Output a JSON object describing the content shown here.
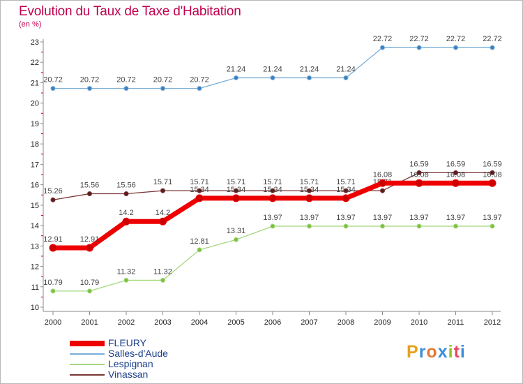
{
  "header": {
    "title": "Evolution du Taux de Taxe d'Habitation",
    "subtitle": "(en %)"
  },
  "logo": {
    "text": "Proxiti",
    "colors": [
      "#e8a020",
      "#3a8fd8",
      "#e87830",
      "#3a8fd8",
      "#8fc030",
      "#e84860",
      "#3a8fd8"
    ]
  },
  "chart_data": {
    "type": "line",
    "title": "Evolution du Taux de Taxe d'Habitation",
    "ylabel": "(en %)",
    "xlabel": "",
    "x": [
      "2000",
      "2001",
      "2002",
      "2003",
      "2004",
      "2005",
      "2006",
      "2007",
      "2008",
      "2009",
      "2010",
      "2011",
      "2012"
    ],
    "ylim": [
      10,
      23
    ],
    "yticks": [
      10,
      11,
      12,
      13,
      14,
      15,
      16,
      17,
      18,
      19,
      20,
      21,
      22,
      23
    ],
    "grid": false,
    "legend_position": "bottom-left",
    "series": [
      {
        "name": "FLEURY",
        "color": "#ee0000",
        "width": 7,
        "values": [
          12.91,
          12.91,
          14.2,
          14.2,
          15.34,
          15.34,
          15.34,
          15.34,
          15.34,
          16.08,
          16.08,
          16.08,
          16.08
        ],
        "labels": [
          "12.91",
          "12.91",
          "14.2",
          "14.2",
          "15.34",
          "15.34",
          "15.34",
          "15.34",
          "15.34",
          "16.08",
          "16.08",
          "16.08",
          "16.08"
        ]
      },
      {
        "name": "Salles-d'Aude",
        "color": "#7aaed6",
        "width": 1.3,
        "values": [
          20.72,
          20.72,
          20.72,
          20.72,
          20.72,
          21.24,
          21.24,
          21.24,
          21.24,
          22.72,
          22.72,
          22.72,
          22.72
        ],
        "labels": [
          "20.72",
          "20.72",
          "20.72",
          "20.72",
          "20.72",
          "21.24",
          "21.24",
          "21.24",
          "21.24",
          "22.72",
          "22.72",
          "22.72",
          "22.72"
        ]
      },
      {
        "name": "Lespignan",
        "color": "#a6d880",
        "width": 1.3,
        "values": [
          10.79,
          10.79,
          11.32,
          11.32,
          12.81,
          13.31,
          13.97,
          13.97,
          13.97,
          13.97,
          13.97,
          13.97,
          13.97
        ],
        "labels": [
          "10.79",
          "10.79",
          "11.32",
          "11.32",
          "12.81",
          "13.31",
          "13.97",
          "13.97",
          "13.97",
          "13.97",
          "13.97",
          "13.97",
          "13.97"
        ]
      },
      {
        "name": "Vinassan",
        "color": "#7a3535",
        "width": 1.3,
        "values": [
          15.26,
          15.56,
          15.56,
          15.71,
          15.71,
          15.71,
          15.71,
          15.71,
          15.71,
          15.71,
          16.59,
          16.59,
          16.59
        ],
        "labels": [
          "15.26",
          "15.56",
          "15.56",
          "15.71",
          "15.71",
          "15.71",
          "15.71",
          "15.71",
          "15.71",
          "15.71",
          "16.59",
          "16.59",
          "16.59"
        ]
      }
    ]
  }
}
